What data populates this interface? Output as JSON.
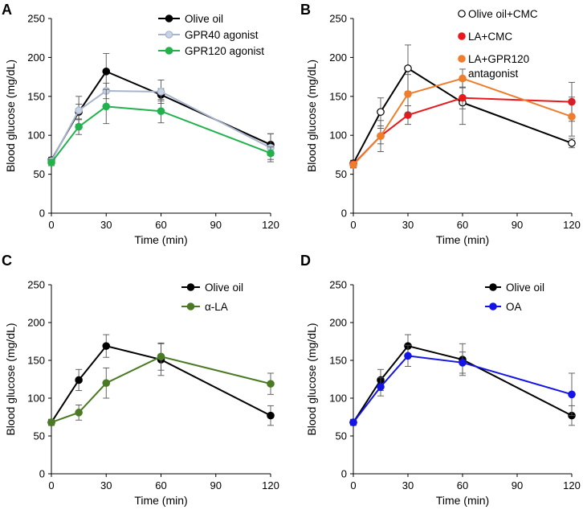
{
  "chart_data": [
    {
      "type": "line",
      "panel": "A",
      "xlabel": "Time (min)",
      "ylabel": "Blood glucose (mg/dL)",
      "xlim": [
        0,
        120
      ],
      "ylim": [
        0,
        250
      ],
      "xticks": [
        "0",
        "30",
        "60",
        "90",
        "120"
      ],
      "yticks": [
        "0",
        "50",
        "100",
        "150",
        "200",
        "250"
      ],
      "grid": false,
      "legend": "top-right",
      "x": [
        0,
        15,
        30,
        60,
        120
      ],
      "series": [
        {
          "name": "Olive oil",
          "color": "#000000",
          "marker_fill": "#000000",
          "values": [
            68,
            130,
            182,
            152,
            88
          ],
          "errors": [
            4,
            10,
            23,
            8,
            14
          ]
        },
        {
          "name": "GPR40 agonist",
          "color": "#a8b4cc",
          "marker_fill": "#c9d3e6",
          "values": [
            67,
            132,
            157,
            156,
            84
          ],
          "errors": [
            4,
            18,
            10,
            15,
            18
          ]
        },
        {
          "name": "GPR120 agonist",
          "color": "#22b14c",
          "marker_fill": "#22b14c",
          "values": [
            65,
            111,
            137,
            131,
            77
          ],
          "errors": [
            4,
            10,
            22,
            15,
            8
          ]
        }
      ]
    },
    {
      "type": "line",
      "panel": "B",
      "xlabel": "Time (min)",
      "ylabel": "Blood glucose (mg/dL)",
      "xlim": [
        0,
        120
      ],
      "ylim": [
        0,
        250
      ],
      "xticks": [
        "0",
        "30",
        "60",
        "90",
        "120"
      ],
      "yticks": [
        "0",
        "50",
        "100",
        "150",
        "200",
        "250"
      ],
      "grid": false,
      "legend": "top-right",
      "x": [
        0,
        15,
        30,
        60,
        120
      ],
      "series": [
        {
          "name": "Olive oil+CMC",
          "color": "#000000",
          "marker_fill": "#ffffff",
          "values": [
            64,
            130,
            186,
            142,
            90
          ],
          "errors": [
            4,
            18,
            30,
            28,
            6
          ]
        },
        {
          "name": "LA+CMC",
          "color": "#e8191c",
          "marker_fill": "#e8191c",
          "values": [
            63,
            99,
            126,
            148,
            143
          ],
          "errors": [
            4,
            10,
            12,
            14,
            25
          ]
        },
        {
          "name": "LA+GPR120 antagonist",
          "color": "#ef7d2e",
          "marker_fill": "#ef7d2e",
          "values": [
            62,
            99,
            153,
            173,
            124
          ],
          "errors": [
            4,
            20,
            25,
            12,
            25
          ]
        }
      ]
    },
    {
      "type": "line",
      "panel": "C",
      "xlabel": "Time (min)",
      "ylabel": "Blood glucose (mg/dL)",
      "xlim": [
        0,
        120
      ],
      "ylim": [
        0,
        250
      ],
      "xticks": [
        "0",
        "30",
        "60",
        "90",
        "120"
      ],
      "yticks": [
        "0",
        "50",
        "100",
        "150",
        "200",
        "250"
      ],
      "grid": false,
      "legend": "top-right",
      "x": [
        0,
        15,
        30,
        60,
        120
      ],
      "series": [
        {
          "name": "Olive oil",
          "color": "#000000",
          "marker_fill": "#000000",
          "values": [
            68,
            124,
            169,
            151,
            77
          ],
          "errors": [
            4,
            14,
            15,
            21,
            13
          ]
        },
        {
          "name": "α-LA",
          "color": "#4a7a23",
          "marker_fill": "#4a7a23",
          "values": [
            68,
            81,
            120,
            155,
            119
          ],
          "errors": [
            4,
            10,
            20,
            18,
            14
          ]
        }
      ]
    },
    {
      "type": "line",
      "panel": "D",
      "xlabel": "Time (min)",
      "ylabel": "Blood glucose (mg/dL)",
      "xlim": [
        0,
        120
      ],
      "ylim": [
        0,
        250
      ],
      "xticks": [
        "0",
        "30",
        "60",
        "90",
        "120"
      ],
      "yticks": [
        "0",
        "50",
        "100",
        "150",
        "200",
        "250"
      ],
      "grid": false,
      "legend": "top-right",
      "x": [
        0,
        15,
        30,
        60,
        120
      ],
      "series": [
        {
          "name": "Olive oil",
          "color": "#000000",
          "marker_fill": "#000000",
          "values": [
            68,
            124,
            169,
            151,
            77
          ],
          "errors": [
            4,
            14,
            15,
            21,
            13
          ]
        },
        {
          "name": "OA",
          "color": "#1414e6",
          "marker_fill": "#1414e6",
          "values": [
            68,
            115,
            156,
            147,
            105
          ],
          "errors": [
            4,
            12,
            14,
            14,
            28
          ]
        }
      ]
    }
  ]
}
